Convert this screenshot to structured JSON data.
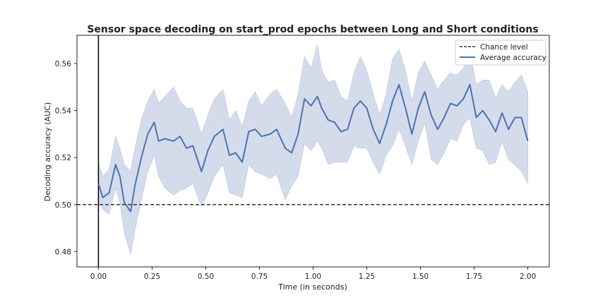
{
  "chart_data": {
    "type": "line",
    "title": "Sensor space decoding on start_prod epochs between Long and Short conditions",
    "xlabel": "Time (in seconds)",
    "ylabel": "Decoding accuracy (AUC)",
    "xlim": [
      -0.1,
      2.1
    ],
    "ylim": [
      0.4735,
      0.572
    ],
    "xticks": [
      0.0,
      0.25,
      0.5,
      0.75,
      1.0,
      1.25,
      1.5,
      1.75,
      2.0
    ],
    "xtick_labels": [
      "0.00",
      "0.25",
      "0.50",
      "0.75",
      "1.00",
      "1.25",
      "1.50",
      "1.75",
      "2.00"
    ],
    "yticks": [
      0.48,
      0.5,
      0.52,
      0.54,
      0.56
    ],
    "ytick_labels": [
      "0.48",
      "0.50",
      "0.52",
      "0.54",
      "0.56"
    ],
    "grid": false,
    "legend_position": "top-right",
    "colors": {
      "line": "#4c72b0",
      "band": "#c5d0e5",
      "chance": "#333333",
      "vline": "#000000"
    },
    "chance_level": 0.5,
    "vline_x": 0.0,
    "series": [
      {
        "name": "Average accuracy",
        "x": [
          0.0,
          0.02,
          0.05,
          0.08,
          0.1,
          0.12,
          0.15,
          0.17,
          0.2,
          0.23,
          0.26,
          0.28,
          0.31,
          0.35,
          0.38,
          0.41,
          0.44,
          0.48,
          0.51,
          0.54,
          0.58,
          0.61,
          0.64,
          0.67,
          0.7,
          0.73,
          0.76,
          0.8,
          0.83,
          0.87,
          0.9,
          0.93,
          0.96,
          0.99,
          1.02,
          1.04,
          1.07,
          1.1,
          1.13,
          1.16,
          1.19,
          1.22,
          1.25,
          1.28,
          1.31,
          1.34,
          1.37,
          1.4,
          1.43,
          1.46,
          1.49,
          1.52,
          1.55,
          1.58,
          1.61,
          1.64,
          1.67,
          1.7,
          1.73,
          1.76,
          1.79,
          1.82,
          1.85,
          1.88,
          1.91,
          1.94,
          1.97,
          2.0
        ],
        "values": [
          0.509,
          0.503,
          0.505,
          0.517,
          0.512,
          0.501,
          0.497,
          0.508,
          0.52,
          0.53,
          0.535,
          0.527,
          0.528,
          0.527,
          0.529,
          0.524,
          0.525,
          0.514,
          0.523,
          0.529,
          0.532,
          0.521,
          0.522,
          0.518,
          0.531,
          0.532,
          0.529,
          0.53,
          0.532,
          0.524,
          0.522,
          0.53,
          0.545,
          0.542,
          0.546,
          0.541,
          0.536,
          0.535,
          0.531,
          0.532,
          0.541,
          0.544,
          0.541,
          0.532,
          0.526,
          0.534,
          0.544,
          0.551,
          0.541,
          0.53,
          0.541,
          0.548,
          0.538,
          0.532,
          0.537,
          0.543,
          0.542,
          0.545,
          0.551,
          0.537,
          0.54,
          0.536,
          0.531,
          0.539,
          0.532,
          0.537,
          0.537,
          0.527
        ],
        "lower": [
          0.501,
          0.498,
          0.496,
          0.507,
          0.501,
          0.488,
          0.479,
          0.489,
          0.502,
          0.514,
          0.521,
          0.512,
          0.507,
          0.504,
          0.506,
          0.507,
          0.509,
          0.499,
          0.505,
          0.512,
          0.517,
          0.505,
          0.504,
          0.503,
          0.517,
          0.514,
          0.513,
          0.511,
          0.513,
          0.502,
          0.508,
          0.512,
          0.526,
          0.523,
          0.527,
          0.524,
          0.517,
          0.518,
          0.518,
          0.518,
          0.525,
          0.524,
          0.524,
          0.518,
          0.513,
          0.521,
          0.525,
          0.532,
          0.525,
          0.517,
          0.527,
          0.535,
          0.519,
          0.517,
          0.522,
          0.528,
          0.527,
          0.534,
          0.537,
          0.524,
          0.523,
          0.517,
          0.518,
          0.527,
          0.519,
          0.517,
          0.514,
          0.509
        ],
        "upper": [
          0.518,
          0.512,
          0.515,
          0.529,
          0.524,
          0.517,
          0.514,
          0.524,
          0.536,
          0.544,
          0.549,
          0.543,
          0.546,
          0.55,
          0.544,
          0.541,
          0.541,
          0.53,
          0.538,
          0.545,
          0.549,
          0.536,
          0.54,
          0.533,
          0.544,
          0.548,
          0.542,
          0.547,
          0.549,
          0.543,
          0.537,
          0.547,
          0.563,
          0.558,
          0.568,
          0.557,
          0.552,
          0.553,
          0.546,
          0.544,
          0.556,
          0.563,
          0.557,
          0.547,
          0.538,
          0.547,
          0.562,
          0.566,
          0.557,
          0.544,
          0.556,
          0.561,
          0.555,
          0.549,
          0.553,
          0.556,
          0.555,
          0.558,
          0.565,
          0.551,
          0.553,
          0.553,
          0.545,
          0.551,
          0.548,
          0.552,
          0.555,
          0.548
        ]
      }
    ],
    "legend": [
      {
        "label": "Chance level",
        "style": "dashed"
      },
      {
        "label": "Average accuracy",
        "style": "solid"
      }
    ]
  }
}
